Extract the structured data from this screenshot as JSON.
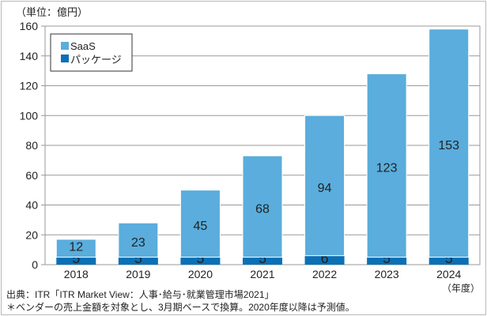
{
  "chart_data": {
    "type": "bar",
    "stacked": true,
    "unit_label": "（単位：億円）",
    "x_unit_label": "（年度）",
    "categories": [
      "2018",
      "2019",
      "2020",
      "2021",
      "2022",
      "2023",
      "2024"
    ],
    "series": [
      {
        "name": "パッケージ",
        "color": "#0b70b5",
        "values": [
          5,
          5,
          5,
          5,
          6,
          5,
          5
        ]
      },
      {
        "name": "SaaS",
        "color": "#5aaddc",
        "values": [
          12,
          23,
          45,
          68,
          94,
          123,
          153
        ]
      }
    ],
    "ylim": [
      0,
      160
    ],
    "yticks": [
      0,
      20,
      40,
      60,
      80,
      100,
      120,
      140,
      160
    ],
    "grid": true,
    "legend": {
      "placement": "top-left",
      "entries": [
        "SaaS",
        "パッケージ"
      ]
    }
  },
  "notes": {
    "source": "出典：ITR「ITR Market View：人事･給与･就業管理市場2021」",
    "footnote": "＊ベンダーの売上金額を対象とし、3月期ベースで換算。2020年度以降は予測値。"
  }
}
